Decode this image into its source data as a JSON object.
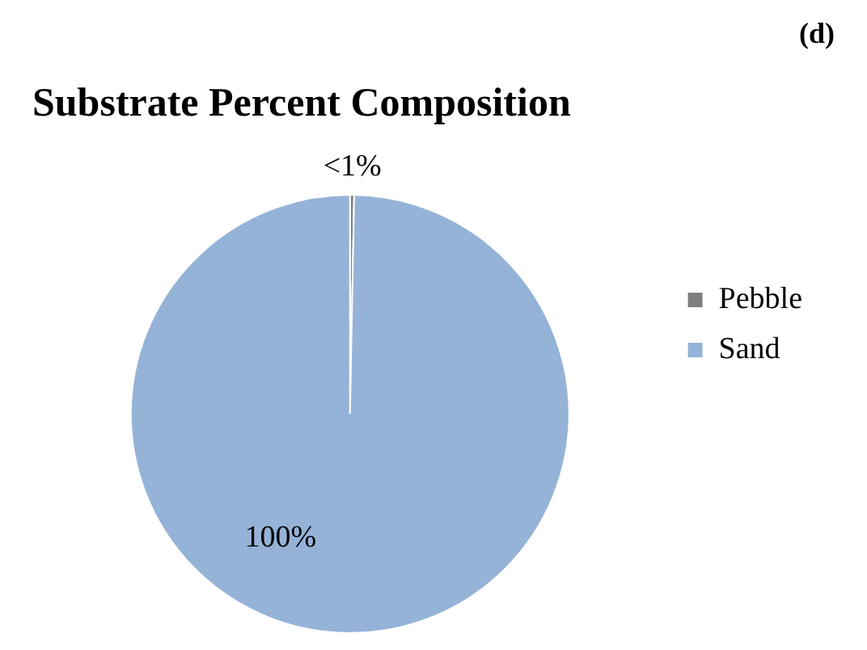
{
  "chart_data": {
    "type": "pie",
    "title": "Substrate Percent Composition",
    "annotations": [
      "(d)"
    ],
    "categories": [
      "Pebble",
      "Sand"
    ],
    "values": [
      0.3,
      99.7
    ],
    "colors": [
      "#7f7f7f",
      "#95b3d7"
    ],
    "value_labels": [
      "<1%",
      "100%"
    ],
    "legend": "right"
  }
}
